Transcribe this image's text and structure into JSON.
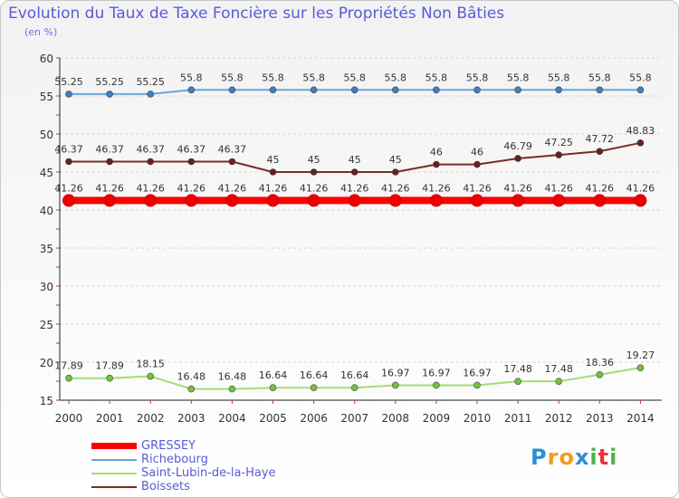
{
  "chart_data": {
    "type": "line",
    "title": "Evolution du Taux de Taxe Foncière sur les Propriétés Non Bâties",
    "ylabel": "(en %)",
    "xlabel": "",
    "x": [
      "2000",
      "2001",
      "2002",
      "2003",
      "2004",
      "2005",
      "2006",
      "2007",
      "2008",
      "2009",
      "2010",
      "2011",
      "2012",
      "2013",
      "2014"
    ],
    "ylim": [
      15,
      60
    ],
    "yticks": [
      15,
      20,
      25,
      30,
      35,
      40,
      45,
      50,
      55,
      60
    ],
    "grid": true,
    "series": [
      {
        "name": "GRESSEY",
        "color": "#ff0000",
        "point_color": "#ee0000",
        "values": [
          41.26,
          41.26,
          41.26,
          41.26,
          41.26,
          41.26,
          41.26,
          41.26,
          41.26,
          41.26,
          41.26,
          41.26,
          41.26,
          41.26,
          41.26
        ],
        "labels": [
          "41.26",
          "41.26",
          "41.26",
          "41.26",
          "41.26",
          "41.26",
          "41.26",
          "41.26",
          "41.26",
          "41.26",
          "41.26",
          "41.26",
          "41.26",
          "41.26",
          "41.26"
        ]
      },
      {
        "name": "Richebourg",
        "color": "#6aa5d8",
        "point_color": "#3d80c4",
        "values": [
          55.25,
          55.25,
          55.25,
          55.8,
          55.8,
          55.8,
          55.8,
          55.8,
          55.8,
          55.8,
          55.8,
          55.8,
          55.8,
          55.8,
          55.8
        ],
        "labels": [
          "55.25",
          "55.25",
          "55.25",
          "55.8",
          "55.8",
          "55.8",
          "55.8",
          "55.8",
          "55.8",
          "55.8",
          "55.8",
          "55.8",
          "55.8",
          "55.8",
          "55.8"
        ]
      },
      {
        "name": "Saint-Lubin-de-la-Haye",
        "color": "#a6dc76",
        "point_color": "#74c23a",
        "values": [
          17.89,
          17.89,
          18.15,
          16.48,
          16.48,
          16.64,
          16.64,
          16.64,
          16.97,
          16.97,
          16.97,
          17.48,
          17.48,
          18.36,
          19.27
        ],
        "labels": [
          "17.89",
          "17.89",
          "18.15",
          "16.48",
          "16.48",
          "16.64",
          "16.64",
          "16.64",
          "16.97",
          "16.97",
          "16.97",
          "17.48",
          "17.48",
          "18.36",
          "19.27"
        ]
      },
      {
        "name": "Boissets",
        "color": "#7a2c2c",
        "point_color": "#6a1f1f",
        "values": [
          46.37,
          46.37,
          46.37,
          46.37,
          46.37,
          45,
          45,
          45,
          45,
          46,
          46,
          46.79,
          47.25,
          47.72,
          48.83
        ],
        "labels": [
          "46.37",
          "46.37",
          "46.37",
          "46.37",
          "46.37",
          "45",
          "45",
          "45",
          "45",
          "46",
          "46",
          "46.79",
          "47.25",
          "47.72",
          "48.83"
        ]
      }
    ]
  },
  "logo": {
    "text": "Proxiti"
  }
}
